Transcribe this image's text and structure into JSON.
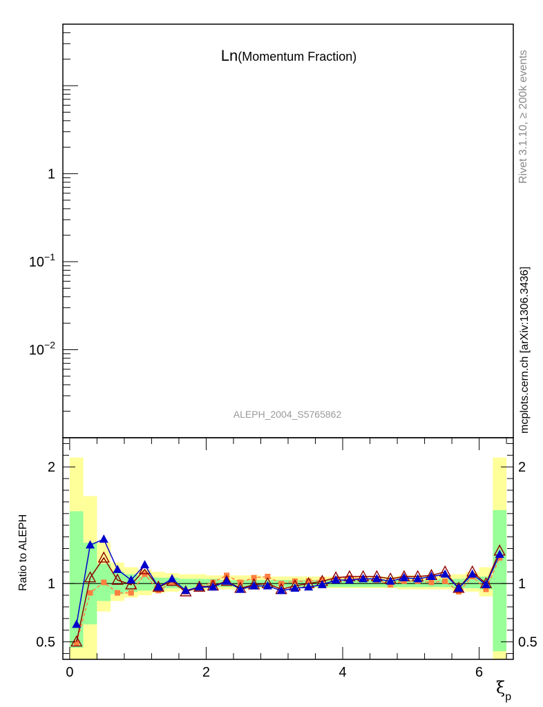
{
  "chart_data": [
    {
      "panel": "main",
      "type": "scatter",
      "title_main": "Ln",
      "title_sub": "(Momentum Fraction)",
      "yscale": "log",
      "ylim": [
        0.001,
        50
      ],
      "y_tick_labels": [
        {
          "value": 1,
          "label": "1"
        },
        {
          "value": 0.1,
          "base": "10",
          "exp": "−1"
        },
        {
          "value": 0.01,
          "base": "10",
          "exp": "−2"
        }
      ],
      "analysis_label": "ALEPH_2004_S5765862",
      "series": []
    },
    {
      "panel": "ratio",
      "type": "line",
      "ylabel": "Ratio to ALEPH",
      "xlabel": "ξ",
      "xlabel_sub": "p",
      "xlim": [
        -0.1,
        6.5
      ],
      "ylim": [
        0.35,
        2.25
      ],
      "x_ticks": [
        0,
        2,
        4,
        6
      ],
      "x_tick_labels": [
        "0",
        "2",
        "4",
        "6"
      ],
      "y_ticks": [
        0.5,
        1,
        2
      ],
      "y_tick_labels": [
        "0.5",
        "1",
        "2"
      ],
      "bin_edges": [
        0,
        0.2,
        0.4,
        0.6,
        0.8,
        1.0,
        1.2,
        1.4,
        1.6,
        1.8,
        2.0,
        2.2,
        2.4,
        2.6,
        2.8,
        3.0,
        3.2,
        3.4,
        3.6,
        3.8,
        4.0,
        4.2,
        4.4,
        4.6,
        4.8,
        5.0,
        5.2,
        5.4,
        5.6,
        5.8,
        6.0,
        6.2,
        6.4
      ],
      "band_yellow": [
        [
          0.35,
          2.08
        ],
        [
          0.35,
          1.75
        ],
        [
          0.76,
          1.35
        ],
        [
          0.85,
          1.18
        ],
        [
          0.88,
          1.14
        ],
        [
          0.9,
          1.12
        ],
        [
          0.92,
          1.1
        ],
        [
          0.93,
          1.09
        ],
        [
          0.94,
          1.08
        ],
        [
          0.94,
          1.08
        ],
        [
          0.95,
          1.07
        ],
        [
          0.95,
          1.07
        ],
        [
          0.95,
          1.07
        ],
        [
          0.95,
          1.07
        ],
        [
          0.96,
          1.06
        ],
        [
          0.96,
          1.06
        ],
        [
          0.96,
          1.06
        ],
        [
          0.96,
          1.06
        ],
        [
          0.96,
          1.06
        ],
        [
          0.96,
          1.06
        ],
        [
          0.96,
          1.06
        ],
        [
          0.96,
          1.06
        ],
        [
          0.96,
          1.06
        ],
        [
          0.96,
          1.06
        ],
        [
          0.95,
          1.07
        ],
        [
          0.95,
          1.07
        ],
        [
          0.95,
          1.07
        ],
        [
          0.95,
          1.07
        ],
        [
          0.94,
          1.08
        ],
        [
          0.93,
          1.1
        ],
        [
          0.89,
          1.14
        ],
        [
          0.35,
          2.08
        ]
      ],
      "band_green": [
        [
          0.45,
          1.62
        ],
        [
          0.65,
          1.35
        ],
        [
          0.85,
          1.17
        ],
        [
          0.91,
          1.1
        ],
        [
          0.93,
          1.08
        ],
        [
          0.94,
          1.06
        ],
        [
          0.95,
          1.05
        ],
        [
          0.96,
          1.05
        ],
        [
          0.96,
          1.04
        ],
        [
          0.96,
          1.04
        ],
        [
          0.97,
          1.04
        ],
        [
          0.97,
          1.03
        ],
        [
          0.97,
          1.03
        ],
        [
          0.97,
          1.03
        ],
        [
          0.97,
          1.03
        ],
        [
          0.97,
          1.03
        ],
        [
          0.97,
          1.03
        ],
        [
          0.97,
          1.03
        ],
        [
          0.97,
          1.03
        ],
        [
          0.97,
          1.03
        ],
        [
          0.97,
          1.03
        ],
        [
          0.97,
          1.03
        ],
        [
          0.97,
          1.03
        ],
        [
          0.97,
          1.03
        ],
        [
          0.97,
          1.03
        ],
        [
          0.97,
          1.03
        ],
        [
          0.97,
          1.03
        ],
        [
          0.97,
          1.04
        ],
        [
          0.96,
          1.04
        ],
        [
          0.96,
          1.05
        ],
        [
          0.95,
          1.06
        ],
        [
          0.42,
          1.63
        ]
      ],
      "x": [
        0.1,
        0.3,
        0.5,
        0.7,
        0.9,
        1.1,
        1.3,
        1.5,
        1.7,
        1.9,
        2.1,
        2.3,
        2.5,
        2.7,
        2.9,
        3.1,
        3.3,
        3.5,
        3.7,
        3.9,
        4.1,
        4.3,
        4.5,
        4.7,
        4.9,
        5.1,
        5.3,
        5.5,
        5.7,
        5.9,
        6.1,
        6.3
      ],
      "series": [
        {
          "color": "#ff7f3f",
          "marker": "square",
          "dashed": true,
          "values": [
            0.49,
            0.92,
            1.01,
            0.92,
            0.92,
            1.08,
            0.94,
            1.01,
            0.93,
            0.97,
            1.01,
            1.07,
            1.01,
            1.05,
            1.06,
            1.0,
            1.02,
            1.02,
            1.03,
            1.04,
            1.05,
            1.04,
            1.03,
            0.99,
            1.02,
            1.02,
            1.01,
            1.02,
            0.93,
            1.06,
            0.95,
            1.22
          ]
        },
        {
          "color": "#8b0000",
          "marker": "triangle-open",
          "dashed": false,
          "values": [
            0.5,
            1.05,
            1.22,
            1.03,
            0.99,
            1.12,
            0.97,
            1.02,
            0.93,
            0.97,
            0.98,
            1.02,
            0.96,
            0.99,
            1.0,
            0.95,
            0.98,
            1.0,
            1.02,
            1.05,
            1.06,
            1.06,
            1.06,
            1.04,
            1.06,
            1.06,
            1.07,
            1.1,
            0.96,
            1.1,
            1.0,
            1.28
          ]
        },
        {
          "color": "#0000cc",
          "marker": "triangle",
          "dashed": false,
          "values": [
            0.65,
            1.33,
            1.38,
            1.12,
            1.03,
            1.16,
            0.97,
            1.04,
            0.94,
            0.97,
            0.97,
            1.02,
            0.95,
            0.98,
            0.98,
            0.94,
            0.96,
            0.97,
            0.99,
            1.03,
            1.03,
            1.04,
            1.04,
            1.02,
            1.05,
            1.04,
            1.06,
            1.08,
            0.96,
            1.08,
            0.99,
            1.25
          ]
        }
      ]
    }
  ],
  "side_labels": {
    "rivet": "Rivet 3.1.10, ≥ 200k events",
    "site": "mcplots.cern.ch [arXiv:1306.3436]"
  }
}
